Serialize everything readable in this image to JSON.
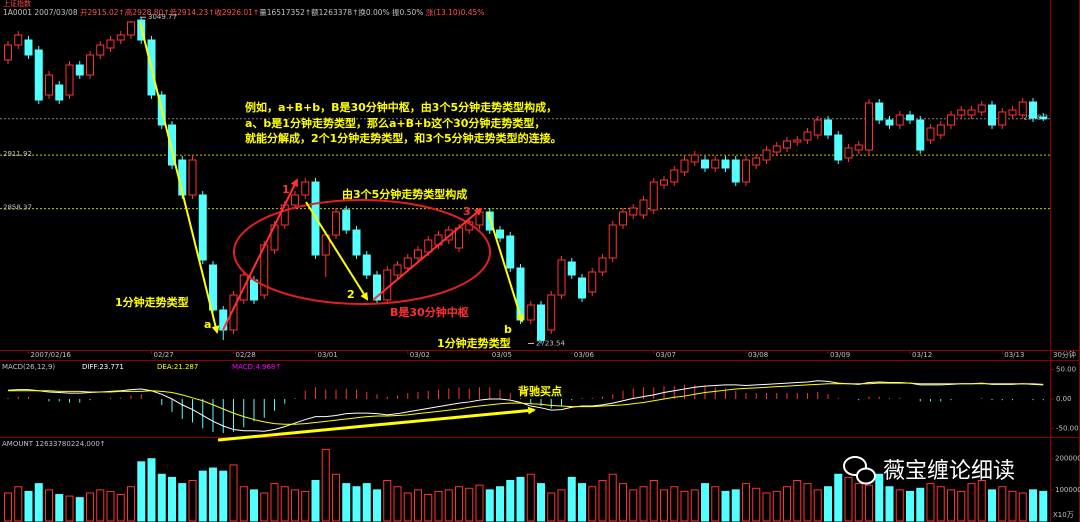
{
  "chart_data": [
    {
      "type": "candlestick",
      "title": "上证指数",
      "info": [
        {
          "text": "1A0001  2007/03/08  ",
          "color": "#c0c0c0"
        },
        {
          "text": "开2915.02↑高2928.80↑低2914.23↑收2926.01↑",
          "color": "#ff5050"
        },
        {
          "text": "量16517352↑额1263378↑换0.00%  振0.50%  ",
          "color": "#c0c0c0"
        },
        {
          "text": "涨(13.10)0.45%",
          "color": "#ff5050"
        }
      ],
      "categories": [
        null,
        null,
        "2007/02/16",
        null,
        null,
        null,
        null,
        null,
        null,
        null,
        null,
        null,
        null,
        null,
        "02/27",
        null,
        null,
        null,
        null,
        null,
        null,
        null,
        "02/28",
        null,
        null,
        null,
        null,
        null,
        null,
        null,
        "03/01",
        null,
        null,
        null,
        null,
        null,
        null,
        null,
        null,
        "03/02",
        null,
        null,
        null,
        null,
        null,
        null,
        null,
        "03/05",
        null,
        null,
        null,
        null,
        null,
        null,
        null,
        "03/06",
        null,
        null,
        null,
        null,
        null,
        null,
        null,
        "03/07",
        null,
        null,
        null,
        null,
        null,
        null,
        null,
        null,
        "03/08",
        null,
        null,
        null,
        null,
        null,
        null,
        null,
        "03/09",
        null,
        null,
        null,
        null,
        null,
        null,
        null,
        "03/12",
        null,
        null,
        null,
        null,
        null,
        null,
        null,
        null,
        "03/13",
        null,
        null,
        null,
        null
      ],
      "open": [
        3007,
        3022,
        3027,
        3017,
        2972,
        2982,
        2972,
        3002,
        2992,
        3012,
        3019,
        3027,
        3032,
        3047,
        3027,
        2972,
        2942,
        2907,
        2872,
        2872,
        2802,
        2757,
        2737,
        2767,
        2787,
        2772,
        2817,
        2842,
        2862,
        2872,
        2885,
        2812,
        2832,
        2857,
        2837,
        2812,
        2792,
        2767,
        2792,
        2799,
        2809,
        2815,
        2822,
        2827,
        2819,
        2837,
        2842,
        2855,
        2837,
        2831,
        2799,
        2747,
        2762,
        2737,
        2772,
        2805,
        2789,
        2775,
        2795,
        2809,
        2842,
        2852,
        2852,
        2857,
        2882,
        2885,
        2895,
        2905,
        2907,
        2899,
        2907,
        2907,
        2885,
        2902,
        2907,
        2915,
        2919,
        2925,
        2927,
        2932,
        2947,
        2932,
        2909,
        2917,
        2917,
        2964,
        2947,
        2942,
        2952,
        2947,
        2927,
        2932,
        2942,
        2952,
        2952,
        2955,
        2962,
        2942,
        2952,
        2952,
        2965,
        2950
      ],
      "high": [
        3026,
        3036,
        3031,
        3021,
        2996,
        2986,
        3006,
        3006,
        3016,
        3026,
        3031,
        3036,
        3046,
        3049.77,
        3031,
        2976,
        2946,
        2911,
        2911,
        2876,
        2806,
        2761,
        2776,
        2796,
        2791,
        2826,
        2846,
        2866,
        2876,
        2889,
        2889,
        2836,
        2859,
        2861,
        2841,
        2816,
        2796,
        2801,
        2806,
        2813,
        2821,
        2831,
        2836,
        2841,
        2843,
        2849,
        2859,
        2859,
        2841,
        2835,
        2803,
        2766,
        2766,
        2776,
        2811,
        2809,
        2793,
        2799,
        2813,
        2846,
        2859,
        2863,
        2871,
        2889,
        2891,
        2901,
        2911,
        2916,
        2911,
        2911,
        2911,
        2911,
        2911,
        2913,
        2921,
        2925,
        2930,
        2931,
        2939,
        2951,
        2951,
        2936,
        2923,
        2926,
        2968,
        2968,
        2951,
        2956,
        2956,
        2951,
        2943,
        2946,
        2956,
        2961,
        2961,
        2966,
        2966,
        2959,
        2961,
        2969,
        2969,
        2954
      ],
      "low": [
        3003,
        3018,
        3008,
        2963,
        2968,
        2963,
        2968,
        2988,
        2988,
        3008,
        3015,
        3023,
        3028,
        3023,
        2968,
        2938,
        2898,
        2868,
        2868,
        2803,
        2753,
        2727,
        2733,
        2763,
        2763,
        2768,
        2813,
        2838,
        2858,
        2868,
        2808,
        2790,
        2828,
        2833,
        2808,
        2788,
        2763,
        2763,
        2788,
        2795,
        2805,
        2811,
        2818,
        2823,
        2815,
        2833,
        2838,
        2833,
        2825,
        2795,
        2743,
        2743,
        2723.54,
        2733,
        2768,
        2788,
        2765,
        2771,
        2791,
        2805,
        2838,
        2848,
        2848,
        2853,
        2878,
        2881,
        2891,
        2901,
        2895,
        2895,
        2895,
        2881,
        2881,
        2898,
        2903,
        2911,
        2915,
        2921,
        2923,
        2928,
        2928,
        2903,
        2905,
        2913,
        2913,
        2943,
        2938,
        2938,
        2943,
        2913,
        2923,
        2928,
        2938,
        2948,
        2948,
        2951,
        2938,
        2938,
        2948,
        2948,
        2945,
        2946
      ],
      "close": [
        3022,
        3032,
        3012,
        2967,
        2992,
        2967,
        3002,
        2992,
        3012,
        3022,
        3027,
        3032,
        3045,
        3027,
        2972,
        2942,
        2902,
        2872,
        2907,
        2807,
        2757,
        2737,
        2772,
        2792,
        2767,
        2822,
        2842,
        2862,
        2872,
        2885,
        2812,
        2832,
        2855,
        2837,
        2812,
        2792,
        2767,
        2797,
        2802,
        2809,
        2817,
        2827,
        2832,
        2837,
        2839,
        2845,
        2855,
        2837,
        2829,
        2799,
        2747,
        2762,
        2727,
        2772,
        2807,
        2792,
        2769,
        2795,
        2809,
        2842,
        2855,
        2859,
        2867,
        2885,
        2887,
        2897,
        2907,
        2912,
        2899,
        2907,
        2899,
        2885,
        2907,
        2909,
        2917,
        2921,
        2926,
        2927,
        2935,
        2947,
        2932,
        2907,
        2919,
        2922,
        2964,
        2947,
        2942,
        2952,
        2947,
        2917,
        2939,
        2942,
        2952,
        2957,
        2957,
        2962,
        2942,
        2955,
        2957,
        2965,
        2949,
        2948.3
      ],
      "up_color": "#ff3232",
      "down_color": "#54ffff",
      "ylim": [
        2717,
        3067
      ],
      "price_lines": [
        {
          "value": 2948.3,
          "side": "right",
          "color": "#808080"
        },
        {
          "value": 2911.92,
          "side": "left",
          "color": "#c8c800"
        },
        {
          "value": 2858.37,
          "side": "left",
          "color": "#c8c800"
        }
      ],
      "extremes": [
        3049.77,
        2723.54
      ],
      "period": "30分钟",
      "annotations": [
        {
          "text": "例如，a+B+b，B是30分钟中枢，由3个5分钟走势类型构成，",
          "color": "#ffff00"
        },
        {
          "text": "a、b是1分钟走势类型，那么a+B+b这个30分钟走势类型，",
          "color": "#ffff00"
        },
        {
          "text": "就能分解成，2个1分钟走势类型，和3个5分钟走势类型的连接。",
          "color": "#ffff00"
        },
        {
          "text": "由3个5分钟走势类型构成",
          "color": "#ffff00"
        },
        {
          "text": "1分钟走势类型",
          "color": "#ffff00"
        },
        {
          "text": "1分钟走势类型",
          "color": "#ffff00"
        },
        {
          "text": "B是30分钟中枢",
          "color": "#ff3030"
        },
        {
          "text": "a",
          "color": "#ffff00"
        },
        {
          "text": "b",
          "color": "#ffff00"
        },
        {
          "text": "1",
          "color": "#ff3030"
        },
        {
          "text": "2",
          "color": "#ffff00"
        },
        {
          "text": "3",
          "color": "#ff3030"
        }
      ]
    },
    {
      "type": "macd",
      "title": "MACD(26,12,9)",
      "series": [
        {
          "name": "DIFF:23.771",
          "color": "#ffffff",
          "values": [
            15,
            16,
            16,
            14,
            12,
            11,
            10,
            10,
            11,
            12,
            13,
            14,
            16,
            17,
            14,
            8,
            0,
            -10,
            -18,
            -28,
            -38,
            -46,
            -52,
            -54,
            -54,
            -55,
            -52,
            -47,
            -41,
            -35,
            -30,
            -30,
            -28,
            -25,
            -24,
            -24,
            -25,
            -27,
            -25,
            -22,
            -19,
            -16,
            -13,
            -10,
            -7,
            -5,
            -2,
            0,
            0,
            -2,
            -6,
            -12,
            -15,
            -19,
            -18,
            -14,
            -12,
            -12,
            -10,
            -7,
            -3,
            1,
            4,
            7,
            11,
            14,
            17,
            20,
            22,
            23,
            24,
            24,
            23,
            24,
            25,
            26,
            27,
            28,
            29,
            31,
            30,
            27,
            26,
            25,
            28,
            29,
            28,
            28,
            27,
            24,
            24,
            24,
            25,
            26,
            26,
            27,
            25,
            25,
            25,
            26,
            25,
            24
          ]
        },
        {
          "name": "DEA:21.287",
          "color": "#ffff00",
          "values": [
            14,
            14,
            14,
            14,
            14,
            13,
            13,
            13,
            12,
            12,
            12,
            13,
            13,
            13,
            14,
            13,
            11,
            7,
            2,
            -3,
            -10,
            -17,
            -24,
            -30,
            -35,
            -39,
            -42,
            -43,
            -43,
            -42,
            -40,
            -38,
            -36,
            -34,
            -32,
            -30,
            -29,
            -29,
            -28,
            -27,
            -25,
            -23,
            -21,
            -19,
            -17,
            -14,
            -12,
            -10,
            -8,
            -7,
            -7,
            -8,
            -9,
            -11,
            -12,
            -13,
            -13,
            -13,
            -12,
            -11,
            -10,
            -8,
            -6,
            -3,
            0,
            3,
            5,
            8,
            11,
            13,
            15,
            17,
            18,
            19,
            20,
            21,
            22,
            23,
            24,
            25,
            26,
            26,
            26,
            26,
            26,
            27,
            27,
            27,
            27,
            26,
            26,
            26,
            26,
            26,
            26,
            26,
            26,
            26,
            26,
            26,
            26,
            25
          ]
        },
        {
          "name": "MACD:4.968↑",
          "color": "#ff00ff",
          "values": [
            2,
            4,
            4,
            0,
            -4,
            -4,
            -6,
            -6,
            -2,
            0,
            2,
            2,
            6,
            8,
            0,
            -10,
            -22,
            -34,
            -40,
            -50,
            -56,
            -58,
            -56,
            -48,
            -38,
            -32,
            -20,
            -8,
            2,
            14,
            20,
            16,
            16,
            18,
            16,
            12,
            8,
            4,
            6,
            10,
            12,
            14,
            16,
            18,
            20,
            18,
            20,
            20,
            16,
            10,
            2,
            -8,
            -12,
            -16,
            -12,
            -2,
            2,
            2,
            4,
            8,
            14,
            18,
            20,
            20,
            22,
            22,
            24,
            24,
            22,
            20,
            18,
            14,
            10,
            10,
            10,
            10,
            10,
            10,
            10,
            12,
            8,
            2,
            0,
            -2,
            4,
            4,
            2,
            2,
            0,
            -4,
            -4,
            -4,
            -2,
            0,
            0,
            2,
            -2,
            -2,
            -2,
            0,
            -2,
            -2
          ]
        }
      ],
      "pos_color": "#ff3232",
      "neg_color": "#54ffff",
      "ylim": [
        -63,
        63
      ],
      "yticks": [
        {
          "value": 50,
          "label": "50.00"
        },
        {
          "value": 0,
          "label": "0.00"
        },
        {
          "value": -50,
          "label": "-50.00"
        }
      ],
      "annotation": "背驰买点"
    },
    {
      "type": "volume",
      "title": "AMOUNT 12633780224.000↑",
      "values": [
        90000,
        110000,
        95000,
        120000,
        100000,
        85000,
        80000,
        75000,
        90000,
        100000,
        95000,
        85000,
        110000,
        190000,
        200000,
        150000,
        140000,
        120000,
        130000,
        160000,
        170000,
        160000,
        180000,
        110000,
        100000,
        90000,
        120000,
        110000,
        100000,
        95000,
        130000,
        230000,
        150000,
        120000,
        110000,
        120000,
        100000,
        130000,
        110000,
        90000,
        100000,
        85000,
        95000,
        100000,
        110000,
        105000,
        115000,
        100000,
        110000,
        130000,
        140000,
        150000,
        120000,
        90000,
        100000,
        140000,
        120000,
        110000,
        130000,
        150000,
        120000,
        100000,
        110000,
        130000,
        100000,
        110000,
        95000,
        100000,
        120000,
        110000,
        95000,
        100000,
        120000,
        105000,
        90000,
        95000,
        110000,
        130000,
        120000,
        100000,
        110000,
        150000,
        140000,
        120000,
        115000,
        150000,
        110000,
        100000,
        95000,
        105000,
        120000,
        110000,
        100000,
        95000,
        120000,
        130000,
        100000,
        110000,
        95000,
        90000,
        100000,
        95000
      ],
      "ylim": [
        0,
        260000
      ],
      "yticks": [
        100000,
        200000
      ],
      "unit": "X10万"
    }
  ],
  "watermark": "薇宝缠论细读"
}
